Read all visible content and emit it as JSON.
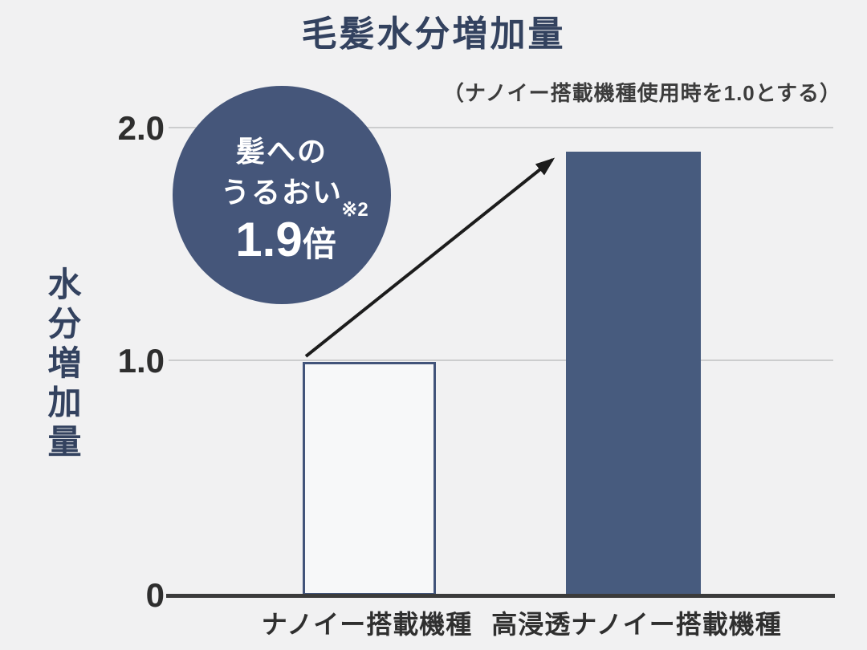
{
  "chart_data": {
    "type": "bar",
    "title": "毛髪水分増加量",
    "subtitle": "（ナノイー搭載機種使用時を1.0とする）",
    "ylabel": "水分増加量",
    "xlabel": "",
    "categories": [
      "ナノイー搭載機種",
      "高浸透ナノイー搭載機種"
    ],
    "values": [
      1.0,
      1.9
    ],
    "ylim": [
      0,
      2.0
    ],
    "ytick_labels": {
      "top": "2.0",
      "mid": "1.0",
      "zero": "0"
    },
    "grid": true,
    "legend": false,
    "bar_styles": [
      "outline",
      "solid"
    ],
    "annotation_badge": {
      "line1": "髪への",
      "line2": "うるおい",
      "value": "1.9",
      "unit": "倍",
      "footnote_mark": "※2"
    },
    "annotation_arrow": {
      "from_category_index": 0,
      "to_category_index": 1
    },
    "colors": {
      "background": "#f1f1f2",
      "heading_navy": "#33425f",
      "bar_solid": "#475b7e",
      "bar_outline_border": "#42547a",
      "bar_outline_fill": "#f7f8f9",
      "badge_circle": "#45567a",
      "badge_text": "#ffffff",
      "gridline": "#cccdce",
      "axis_line": "#3b3b3b",
      "tick_text": "#2e2e2e",
      "arrow": "#1c1c1c"
    }
  }
}
